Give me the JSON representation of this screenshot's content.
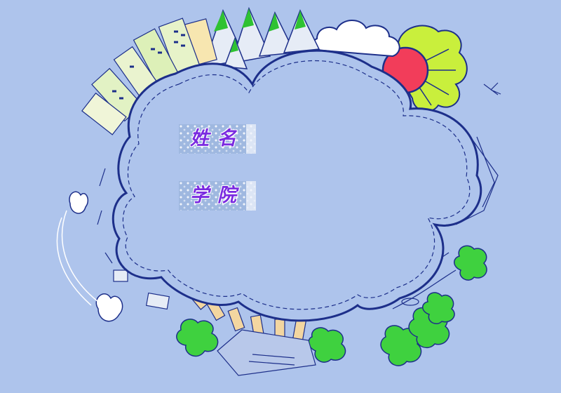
{
  "form": {
    "name_label": "姓名",
    "college_label": "学院"
  },
  "colors": {
    "background": "#aec4ec",
    "cloud_fill": "#aec4ec",
    "cloud_outline": "#1d2f8a",
    "sun": "#f23d5a",
    "sun_rays_cloud": "#c9ef3c",
    "tree_green": "#3fd13f",
    "label_text": "#7a2be0"
  }
}
